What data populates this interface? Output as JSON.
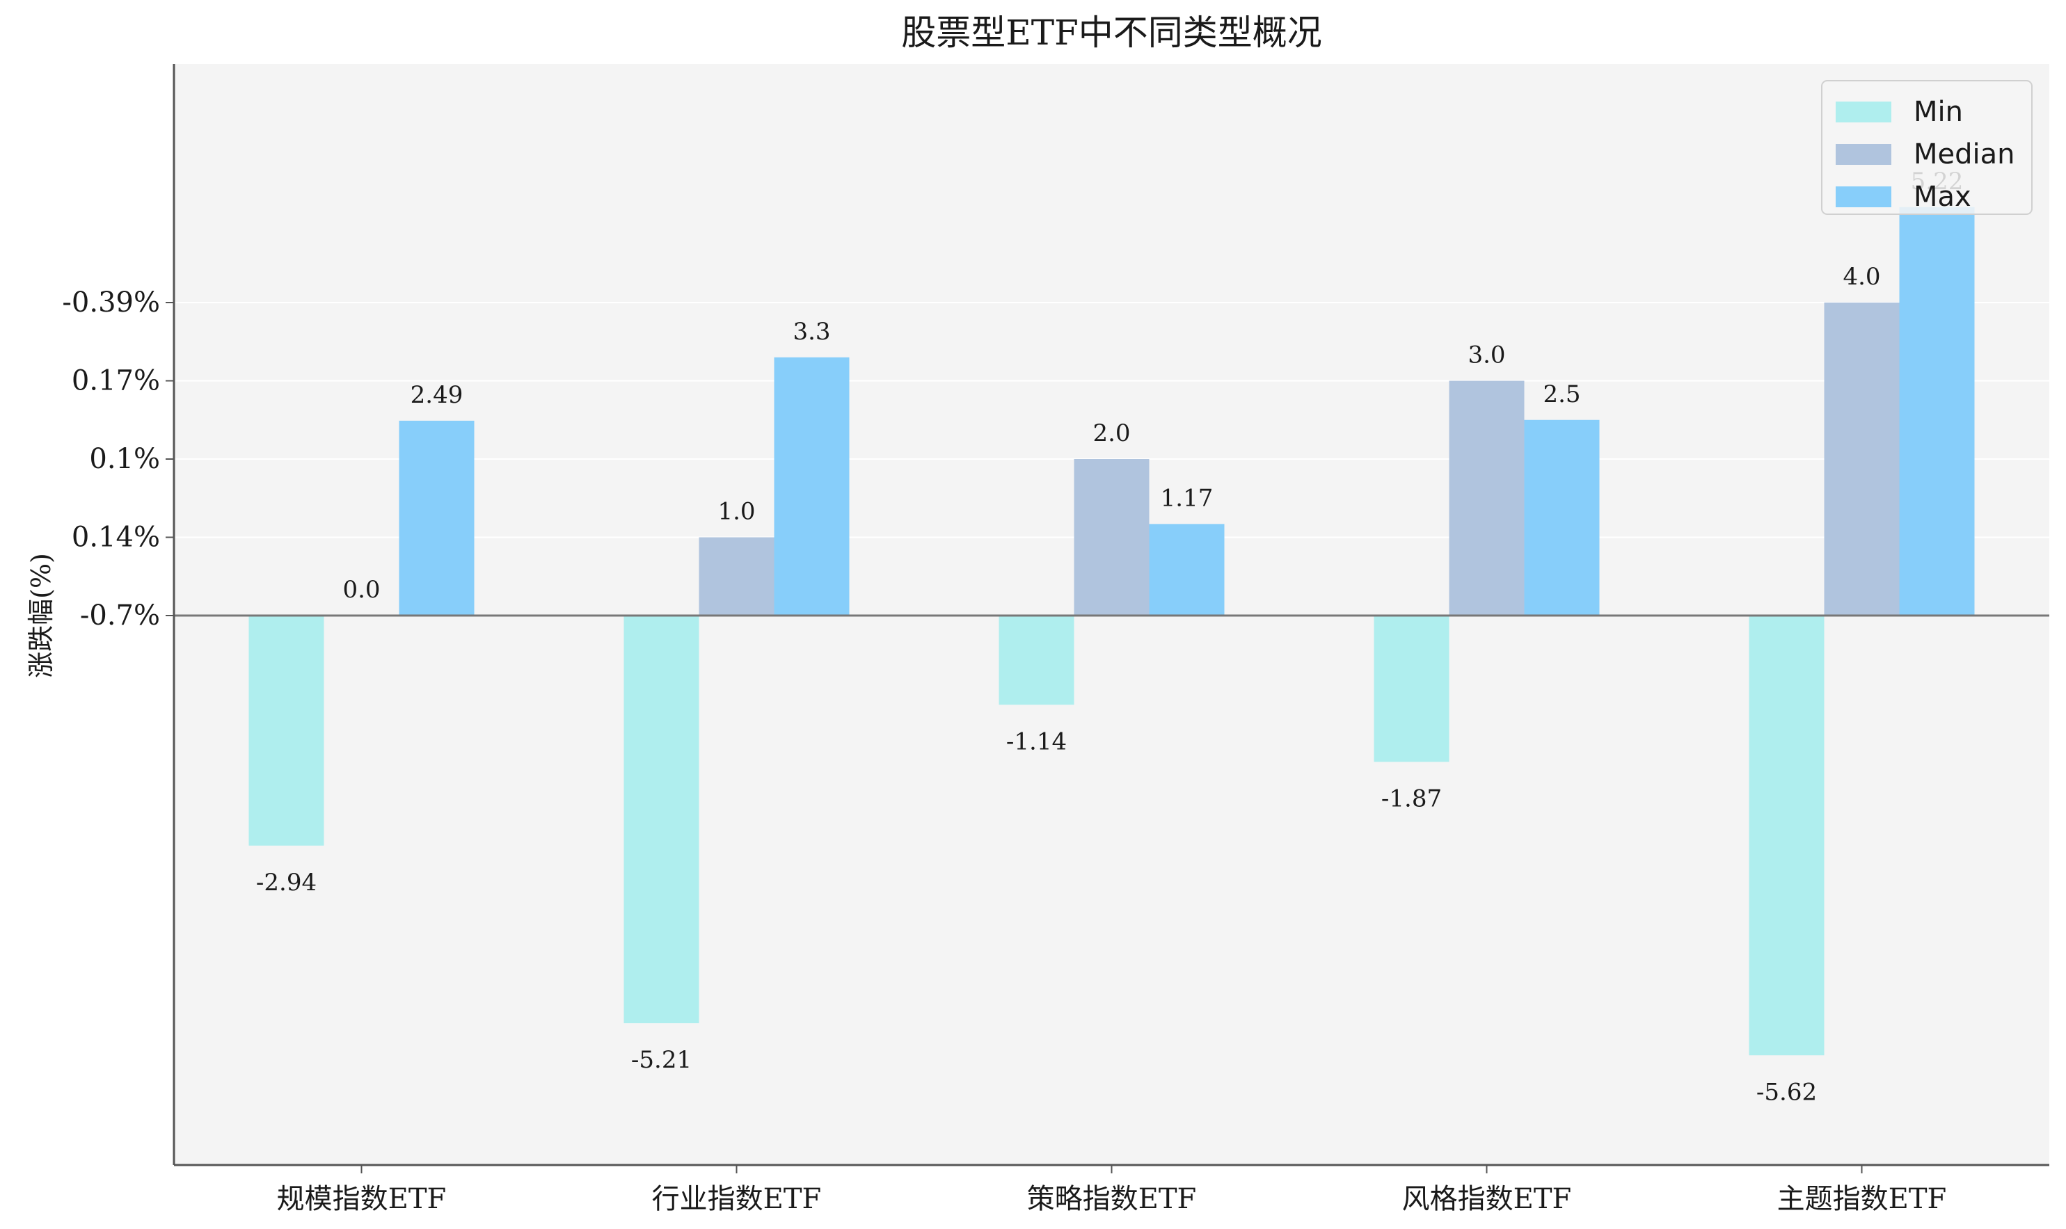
{
  "chart_data": {
    "type": "bar",
    "title": "股票型ETF中不同类型概况",
    "xlabel": "",
    "ylabel": "涨跌幅(%)",
    "categories": [
      "规模指数ETF",
      "行业指数ETF",
      "策略指数ETF",
      "风格指数ETF",
      "主题指数ETF"
    ],
    "series": [
      {
        "name": "Min",
        "color": "#afeeee",
        "values": [
          -2.94,
          -5.21,
          -1.14,
          -1.87,
          -5.62
        ],
        "labels": [
          "-2.94",
          "-5.21",
          "-1.14",
          "-1.87",
          "-5.62"
        ]
      },
      {
        "name": "Median",
        "color": "#b0c4de",
        "values": [
          0.0,
          1.0,
          2.0,
          3.0,
          4.0
        ],
        "labels": [
          "0.0",
          "1.0",
          "2.0",
          "3.0",
          "4.0"
        ]
      },
      {
        "name": "Max",
        "color": "#87cefa",
        "values": [
          2.49,
          3.3,
          1.17,
          2.5,
          5.22
        ],
        "labels": [
          "2.49",
          "3.3",
          "1.17",
          "2.5",
          "5.22"
        ]
      }
    ],
    "yticks": [
      0,
      1,
      2,
      3,
      4
    ],
    "yticklabels": [
      "-0.7%",
      "0.14%",
      "0.1%",
      "0.17%",
      "-0.39%"
    ],
    "ylim": [
      -7,
      7.0
    ],
    "grid": true,
    "legend": "top-right",
    "background": "#f4f4f4"
  }
}
